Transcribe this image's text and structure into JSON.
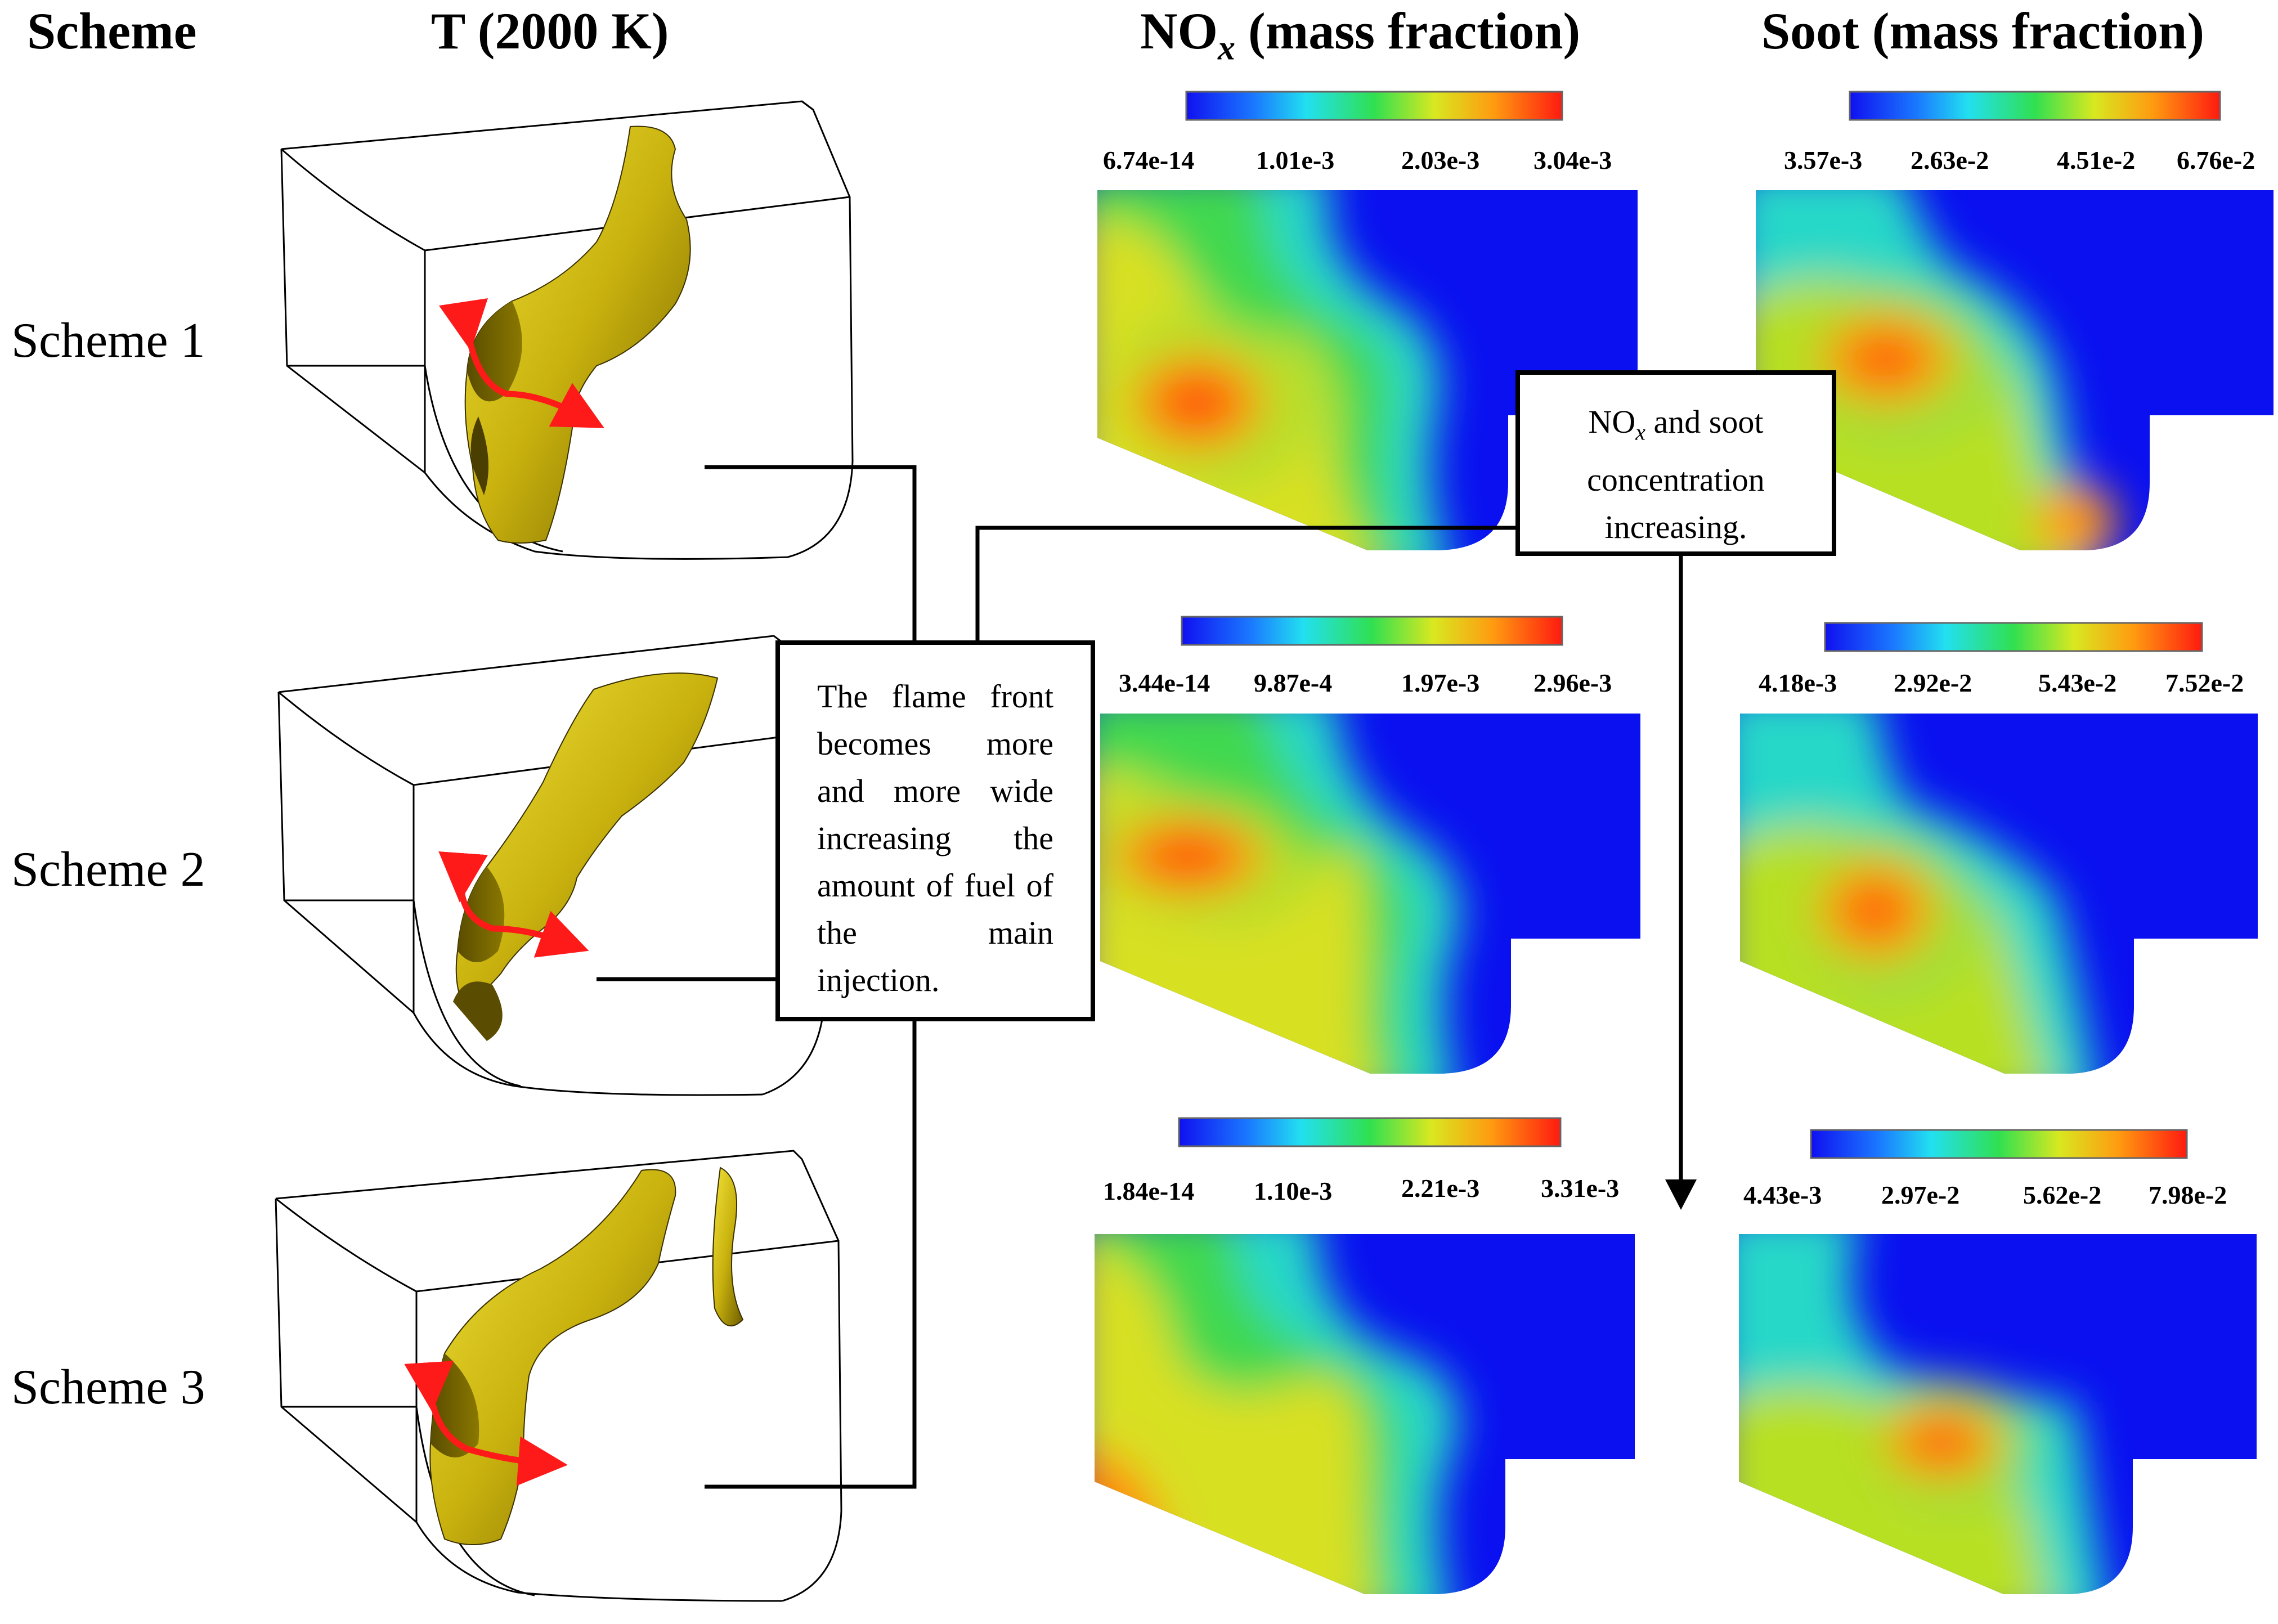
{
  "headers": {
    "scheme": "Scheme",
    "temperature": "T (2000 K)",
    "nox_main": "NO",
    "nox_sub": "x",
    "nox_rest": " (mass fraction)",
    "soot": "Soot (mass fraction)"
  },
  "rows": [
    {
      "label": "Scheme 1",
      "nox_ticks": [
        "6.74e-14",
        "1.01e-3",
        "2.03e-3",
        "3.04e-3"
      ],
      "soot_ticks": [
        "3.57e-3",
        "2.63e-2",
        "4.51e-2",
        "6.76e-2"
      ]
    },
    {
      "label": "Scheme 2",
      "nox_ticks": [
        "3.44e-14",
        "9.87e-4",
        "1.97e-3",
        "2.96e-3"
      ],
      "soot_ticks": [
        "4.18e-3",
        "2.92e-2",
        "5.43e-2",
        "7.52e-2"
      ]
    },
    {
      "label": "Scheme 3",
      "nox_ticks": [
        "1.84e-14",
        "1.10e-3",
        "2.21e-3",
        "3.31e-3"
      ],
      "soot_ticks": [
        "4.43e-3",
        "2.97e-2",
        "5.62e-2",
        "7.98e-2"
      ]
    }
  ],
  "callouts": {
    "flame": "The flame front becomes more and more wide increasing the amount of fuel of the main injection.",
    "concentration_pre": "NO",
    "concentration_sub": "x",
    "concentration_post": " and soot concentration increasing."
  },
  "colors": {
    "isosurface_light": "#e6d21c",
    "isosurface_dark": "#6f5e00",
    "arrow": "#ff1a1a",
    "field_blue": "#0a10f0",
    "field_red": "#ff3010"
  }
}
